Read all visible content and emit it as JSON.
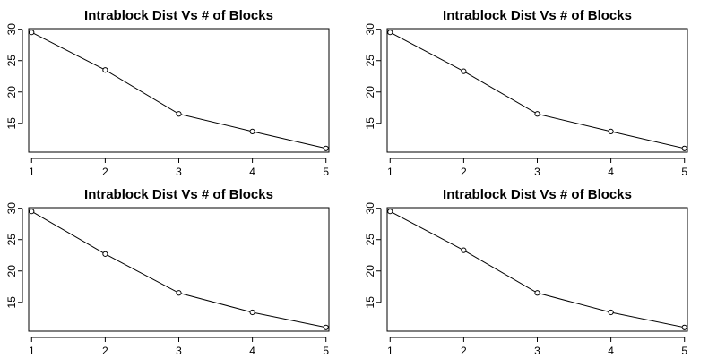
{
  "chart_data": [
    {
      "type": "line",
      "title": "Intrablock Dist Vs # of Blocks",
      "xlabel": "",
      "ylabel": "",
      "x": [
        1,
        2,
        3,
        4,
        5
      ],
      "series": [
        {
          "values": [
            29.5,
            23.5,
            16.5,
            13.7,
            11.0
          ]
        }
      ],
      "xticks": [
        1,
        2,
        3,
        4,
        5
      ],
      "yticks": [
        15,
        20,
        25,
        30
      ],
      "xlim": [
        0.96,
        5.04
      ],
      "ylim": [
        10.4,
        30.1
      ],
      "grid": false,
      "markers": "open-circle"
    },
    {
      "type": "line",
      "title": "Intrablock Dist Vs # of Blocks",
      "xlabel": "",
      "ylabel": "",
      "x": [
        1,
        2,
        3,
        4,
        5
      ],
      "series": [
        {
          "values": [
            29.5,
            23.3,
            16.5,
            13.7,
            11.0
          ]
        }
      ],
      "xticks": [
        1,
        2,
        3,
        4,
        5
      ],
      "yticks": [
        15,
        20,
        25,
        30
      ],
      "xlim": [
        0.96,
        5.04
      ],
      "ylim": [
        10.4,
        30.1
      ],
      "grid": false,
      "markers": "open-circle"
    },
    {
      "type": "line",
      "title": "Intrablock Dist Vs # of Blocks",
      "xlabel": "",
      "ylabel": "",
      "x": [
        1,
        2,
        3,
        4,
        5
      ],
      "series": [
        {
          "values": [
            29.5,
            22.7,
            16.5,
            13.4,
            11.0
          ]
        }
      ],
      "xticks": [
        1,
        2,
        3,
        4,
        5
      ],
      "yticks": [
        15,
        20,
        25,
        30
      ],
      "xlim": [
        0.96,
        5.04
      ],
      "ylim": [
        10.4,
        30.1
      ],
      "grid": false,
      "markers": "open-circle"
    },
    {
      "type": "line",
      "title": "Intrablock Dist Vs # of Blocks",
      "xlabel": "",
      "ylabel": "",
      "x": [
        1,
        2,
        3,
        4,
        5
      ],
      "series": [
        {
          "values": [
            29.5,
            23.3,
            16.5,
            13.4,
            11.0
          ]
        }
      ],
      "xticks": [
        1,
        2,
        3,
        4,
        5
      ],
      "yticks": [
        15,
        20,
        25,
        30
      ],
      "xlim": [
        0.96,
        5.04
      ],
      "ylim": [
        10.4,
        30.1
      ],
      "grid": false,
      "markers": "open-circle"
    }
  ]
}
